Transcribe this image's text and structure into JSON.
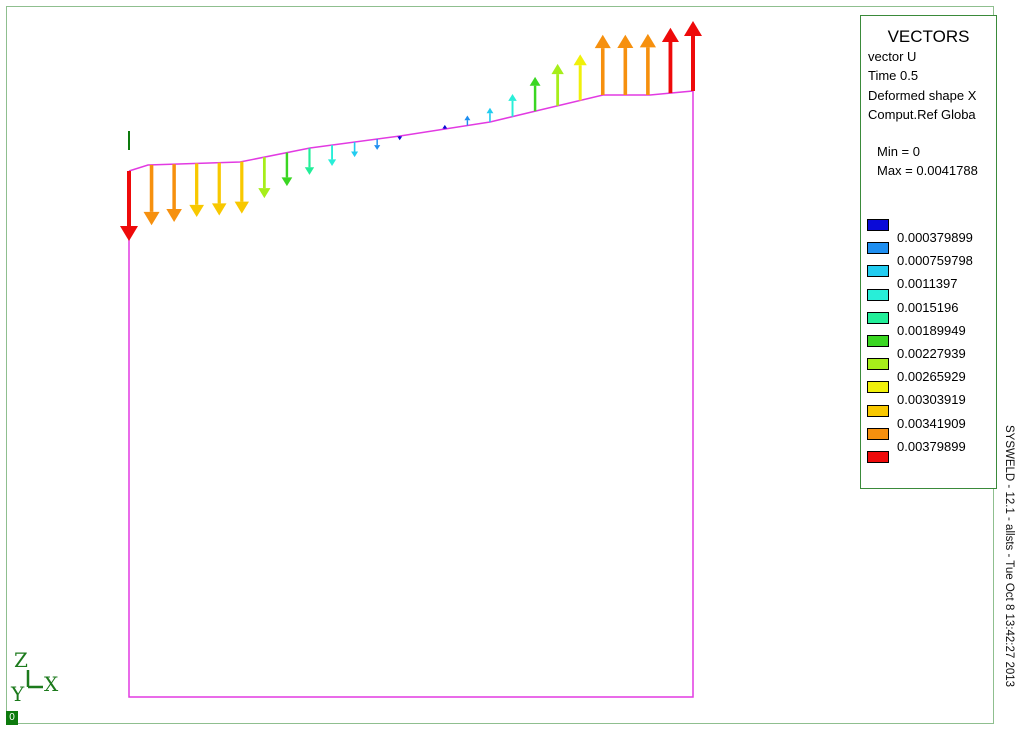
{
  "legend": {
    "title": "VECTORS",
    "lines": [
      "vector U",
      "Time 0.5",
      "Deformed shape X",
      "Comput.Ref Globa"
    ],
    "min_text": "Min = 0",
    "max_text": "Max = 0.0041788",
    "items": [
      {
        "label": "0.000379899",
        "color": "#0a0ad8"
      },
      {
        "label": "0.000759798",
        "color": "#1e8ef0"
      },
      {
        "label": "0.0011397",
        "color": "#22ccf0"
      },
      {
        "label": "0.0015196",
        "color": "#28eed8"
      },
      {
        "label": "0.00189949",
        "color": "#22ee99"
      },
      {
        "label": "0.00227939",
        "color": "#3ad622"
      },
      {
        "label": "0.00265929",
        "color": "#a6ee1a"
      },
      {
        "label": "0.00303919",
        "color": "#f0f00a"
      },
      {
        "label": "0.00341909",
        "color": "#f8c800"
      },
      {
        "label": "0.00379899",
        "color": "#f6900e"
      },
      {
        "label": "",
        "color": "#ee0a0a"
      }
    ]
  },
  "axis_triad": {
    "z": "Z",
    "y": "Y",
    "x": "X"
  },
  "step_indicator": "0",
  "side_stamp": "SYSWELD - 12.1  -  allsts  -  Tue Oct  8 13:42:27 2013",
  "colors": {
    "frame": "#8fbf8f",
    "mesh_outline": "#e23ae2",
    "axis_triad": "#1c7a1c"
  },
  "field": {
    "quantity": "vector U",
    "min": 0,
    "max": 0.0041788,
    "vectors": [
      {
        "x": 0.0,
        "u": -0.00418
      },
      {
        "x": 0.04,
        "u": -0.0036
      },
      {
        "x": 0.08,
        "u": -0.00345
      },
      {
        "x": 0.12,
        "u": -0.0032
      },
      {
        "x": 0.16,
        "u": -0.00315
      },
      {
        "x": 0.2,
        "u": -0.0031
      },
      {
        "x": 0.24,
        "u": -0.00245
      },
      {
        "x": 0.28,
        "u": -0.002
      },
      {
        "x": 0.32,
        "u": -0.0016
      },
      {
        "x": 0.36,
        "u": -0.00125
      },
      {
        "x": 0.4,
        "u": -0.0009
      },
      {
        "x": 0.44,
        "u": -0.00065
      },
      {
        "x": 0.48,
        "u": -0.00025
      },
      {
        "x": 0.56,
        "u": 0.00025
      },
      {
        "x": 0.6,
        "u": 0.0006
      },
      {
        "x": 0.64,
        "u": 0.00085
      },
      {
        "x": 0.68,
        "u": 0.00135
      },
      {
        "x": 0.72,
        "u": 0.00205
      },
      {
        "x": 0.76,
        "u": 0.0025
      },
      {
        "x": 0.8,
        "u": 0.00275
      },
      {
        "x": 0.84,
        "u": 0.0036
      },
      {
        "x": 0.88,
        "u": 0.0036
      },
      {
        "x": 0.92,
        "u": 0.00365
      },
      {
        "x": 0.96,
        "u": 0.0039
      },
      {
        "x": 1.0,
        "u": 0.00418
      }
    ]
  }
}
